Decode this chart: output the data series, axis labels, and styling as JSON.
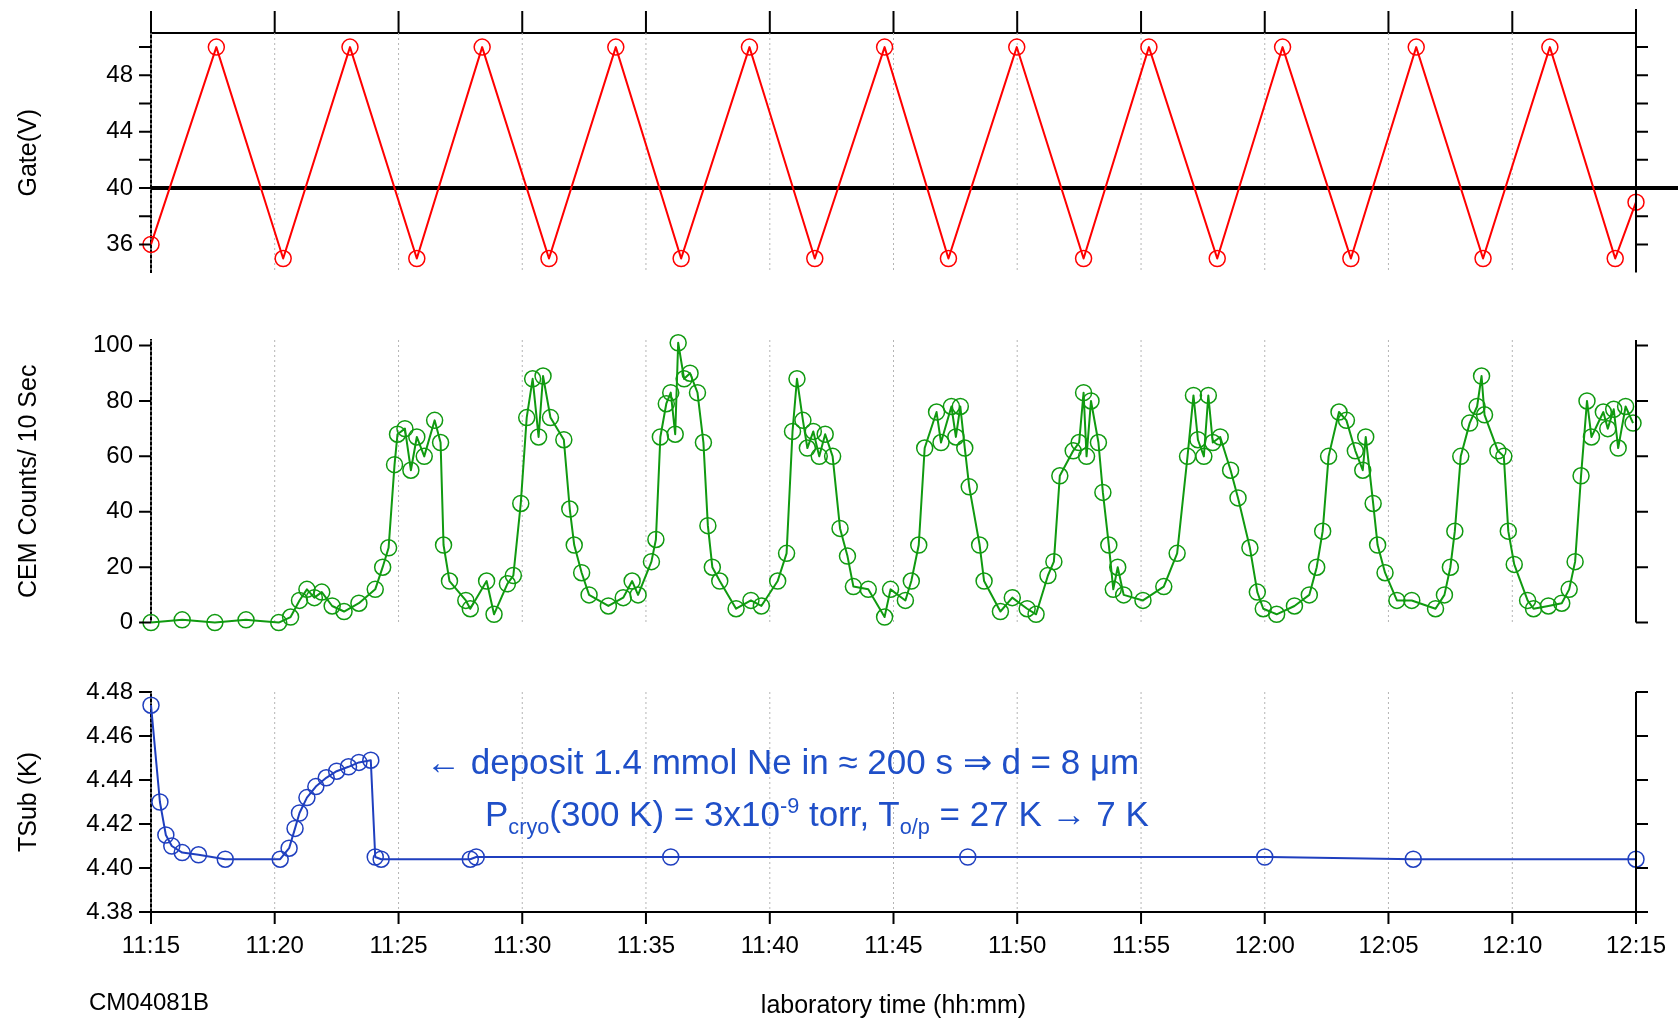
{
  "chart_data": [
    {
      "type": "line",
      "ylabel": "Gate(V)",
      "marker": "circle",
      "grid": "x",
      "tick_labels": "y",
      "xlim": [
        11.25,
        12.25
      ],
      "ylim": [
        34,
        51
      ],
      "xticks": [
        {
          "value": 11.25,
          "label": null
        },
        {
          "value": 11.3333,
          "label": null
        },
        {
          "value": 11.4167,
          "label": null
        },
        {
          "value": 11.5,
          "label": null
        },
        {
          "value": 11.5833,
          "label": null
        },
        {
          "value": 11.6667,
          "label": null
        },
        {
          "value": 11.75,
          "label": null
        },
        {
          "value": 11.8333,
          "label": null
        },
        {
          "value": 11.9167,
          "label": null
        },
        {
          "value": 12,
          "label": null
        },
        {
          "value": 12.0833,
          "label": null
        },
        {
          "value": 12.1667,
          "label": null
        },
        {
          "value": 12.25,
          "label": null
        }
      ],
      "yticks": [
        36,
        {
          "value": 38,
          "label": null
        },
        40,
        {
          "value": 42,
          "label": null
        },
        44,
        {
          "value": 46,
          "label": null
        },
        48,
        {
          "value": 50,
          "label": null
        }
      ],
      "ref_lines": [
        {
          "axis": "y",
          "value": 40,
          "color": "#000000"
        }
      ],
      "x": [
        11.25,
        11.294,
        11.339,
        11.384,
        11.429,
        11.473,
        11.518,
        11.563,
        11.607,
        11.653,
        11.697,
        11.744,
        11.787,
        11.833,
        11.878,
        11.922,
        11.968,
        12.012,
        12.058,
        12.102,
        12.147,
        12.192,
        12.236,
        12.25
      ],
      "series": [
        {
          "color": "#ff0000",
          "values": [
            36,
            50,
            35,
            50,
            35,
            50,
            35,
            50,
            35,
            50,
            35,
            50,
            35,
            50,
            35,
            50,
            35,
            50,
            35,
            50,
            35,
            50,
            35,
            39
          ]
        }
      ]
    },
    {
      "type": "line",
      "ylabel": "CEM Counts/ 10 Sec",
      "marker": "circle",
      "grid": "x",
      "tick_labels": "y",
      "xlim": [
        11.25,
        12.25
      ],
      "ylim": [
        0,
        102
      ],
      "xticks": [
        {
          "value": 11.25,
          "label": null
        },
        {
          "value": 11.3333,
          "label": null
        },
        {
          "value": 11.4167,
          "label": null
        },
        {
          "value": 11.5,
          "label": null
        },
        {
          "value": 11.5833,
          "label": null
        },
        {
          "value": 11.6667,
          "label": null
        },
        {
          "value": 11.75,
          "label": null
        },
        {
          "value": 11.8333,
          "label": null
        },
        {
          "value": 11.9167,
          "label": null
        },
        {
          "value": 12,
          "label": null
        },
        {
          "value": 12.0833,
          "label": null
        },
        {
          "value": 12.1667,
          "label": null
        },
        {
          "value": 12.25,
          "label": null
        }
      ],
      "yticks": [
        0,
        20,
        40,
        60,
        80,
        100
      ],
      "x": [
        11.25,
        11.271,
        11.293,
        11.314,
        11.336,
        11.344,
        11.35,
        11.355,
        11.36,
        11.365,
        11.372,
        11.38,
        11.39,
        11.401,
        11.406,
        11.41,
        11.414,
        11.416,
        11.421,
        11.425,
        11.429,
        11.434,
        11.441,
        11.445,
        11.447,
        11.451,
        11.462,
        11.465,
        11.476,
        11.481,
        11.49,
        11.494,
        11.499,
        11.503,
        11.507,
        11.511,
        11.514,
        11.519,
        11.528,
        11.532,
        11.535,
        11.54,
        11.545,
        11.558,
        11.568,
        11.574,
        11.578,
        11.587,
        11.59,
        11.593,
        11.597,
        11.6,
        11.603,
        11.605,
        11.609,
        11.613,
        11.618,
        11.622,
        11.625,
        11.628,
        11.633,
        11.644,
        11.654,
        11.661,
        11.672,
        11.678,
        11.682,
        11.685,
        11.689,
        11.692,
        11.696,
        11.7,
        11.704,
        11.709,
        11.714,
        11.719,
        11.723,
        11.733,
        11.744,
        11.748,
        11.758,
        11.762,
        11.767,
        11.771,
        11.779,
        11.782,
        11.789,
        11.792,
        11.795,
        11.798,
        11.801,
        11.808,
        11.811,
        11.822,
        11.83,
        11.84,
        11.846,
        11.854,
        11.858,
        11.862,
        11.871,
        11.875,
        11.878,
        11.88,
        11.883,
        11.888,
        11.891,
        11.895,
        11.898,
        11.901,
        11.905,
        11.918,
        11.932,
        11.941,
        11.948,
        11.952,
        11.955,
        11.959,
        11.962,
        11.965,
        11.97,
        11.977,
        11.982,
        11.99,
        11.995,
        11.999,
        12.008,
        12.02,
        12.03,
        12.035,
        12.039,
        12.043,
        12.05,
        12.055,
        12.061,
        12.066,
        12.068,
        12.073,
        12.076,
        12.081,
        12.089,
        12.099,
        12.115,
        12.121,
        12.125,
        12.128,
        12.132,
        12.138,
        12.143,
        12.146,
        12.148,
        12.157,
        12.161,
        12.164,
        12.168,
        12.177,
        12.181,
        12.191,
        12.2,
        12.205,
        12.209,
        12.213,
        12.217,
        12.22,
        12.228,
        12.231,
        12.235,
        12.238,
        12.243,
        12.248
      ],
      "series": [
        {
          "color": "#109a10",
          "values": [
            0,
            1,
            0,
            1,
            0,
            2,
            8,
            12,
            9,
            11,
            6,
            4,
            7,
            12,
            20,
            27,
            57,
            68,
            70,
            55,
            67,
            60,
            73,
            65,
            28,
            15,
            8,
            5,
            15,
            3,
            14,
            17,
            43,
            74,
            88,
            67,
            89,
            74,
            66,
            41,
            28,
            18,
            10,
            6,
            9,
            15,
            10,
            22,
            30,
            67,
            79,
            83,
            68,
            101,
            88,
            90,
            83,
            65,
            35,
            20,
            15,
            5,
            8,
            6,
            15,
            25,
            69,
            88,
            73,
            63,
            69,
            60,
            68,
            60,
            34,
            24,
            13,
            12,
            2,
            12,
            8,
            15,
            28,
            63,
            76,
            65,
            78,
            67,
            78,
            63,
            49,
            28,
            15,
            4,
            9,
            5,
            3,
            17,
            22,
            53,
            62,
            65,
            83,
            60,
            80,
            65,
            47,
            28,
            12,
            20,
            10,
            8,
            13,
            25,
            60,
            82,
            66,
            60,
            82,
            65,
            67,
            55,
            45,
            27,
            11,
            5,
            3,
            6,
            10,
            20,
            33,
            60,
            76,
            73,
            62,
            55,
            67,
            43,
            28,
            18,
            8,
            8,
            5,
            10,
            20,
            33,
            60,
            72,
            78,
            89,
            75,
            62,
            60,
            33,
            21,
            8,
            5,
            6,
            7,
            12,
            22,
            53,
            80,
            67,
            76,
            70,
            77,
            63,
            78,
            72
          ]
        }
      ]
    },
    {
      "type": "line",
      "ylabel": "TSub (K)",
      "xlabel": "laboratory time (hh:mm)",
      "marker": "circle",
      "grid": "x",
      "xlim": [
        11.25,
        12.25
      ],
      "ylim": [
        4.38,
        4.48
      ],
      "xticks": [
        {
          "value": 11.25,
          "label": "11:15"
        },
        {
          "value": 11.3333,
          "label": "11:20"
        },
        {
          "value": 11.4167,
          "label": "11:25"
        },
        {
          "value": 11.5,
          "label": "11:30"
        },
        {
          "value": 11.5833,
          "label": "11:35"
        },
        {
          "value": 11.6667,
          "label": "11:40"
        },
        {
          "value": 11.75,
          "label": "11:45"
        },
        {
          "value": 11.8333,
          "label": "11:50"
        },
        {
          "value": 11.9167,
          "label": "11:55"
        },
        {
          "value": 12,
          "label": "12:00"
        },
        {
          "value": 12.0833,
          "label": "12:05"
        },
        {
          "value": 12.1667,
          "label": "12:10"
        },
        {
          "value": 12.25,
          "label": "12:15"
        }
      ],
      "yticks": [
        {
          "value": 4.38,
          "label": "4.38"
        },
        {
          "value": 4.4,
          "label": "4.40"
        },
        {
          "value": 4.42,
          "label": "4.42"
        },
        {
          "value": 4.44,
          "label": "4.44"
        },
        {
          "value": 4.46,
          "label": "4.46"
        },
        {
          "value": 4.48,
          "label": "4.48"
        }
      ],
      "annotations": [
        "← deposit 1.4 mmol Ne in ≈ 200 s ⇒ d = 8 μm",
        "P$_{cryo}$(300 K) = 3x10$^{-9}$ torr, T$_{o/p}$ = 27 K → 7 K",
        "CM04081B"
      ],
      "x": [
        11.25,
        11.256,
        11.26,
        11.264,
        11.271,
        11.282,
        11.3,
        11.337,
        11.343,
        11.347,
        11.35,
        11.355,
        11.361,
        11.368,
        11.375,
        11.383,
        11.39,
        11.398,
        11.401,
        11.405,
        11.465,
        11.469,
        11.6,
        11.8,
        12,
        12.1,
        12.25
      ],
      "series": [
        {
          "color": "#1f3fbf",
          "values": [
            4.474,
            4.43,
            4.415,
            4.41,
            4.407,
            4.406,
            4.404,
            4.404,
            4.409,
            4.418,
            4.425,
            4.432,
            4.437,
            4.441,
            4.444,
            4.446,
            4.448,
            4.449,
            4.405,
            4.404,
            4.404,
            4.405,
            4.405,
            4.405,
            4.405,
            4.404,
            4.404
          ]
        }
      ]
    }
  ]
}
